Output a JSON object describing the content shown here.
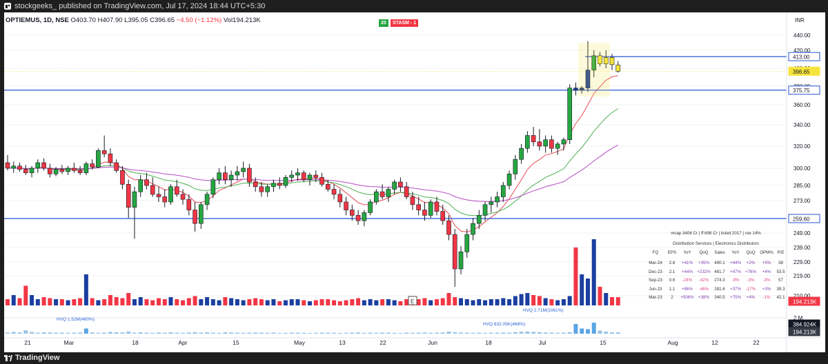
{
  "page": {
    "publisher_line": "stockgeeks_ published on TradingView.com, Jul 17, 2024 18:44 UTC+5:30",
    "brand": "TradingView"
  },
  "legend": {
    "symbol": "OPTIEMUS, 1D, NSE",
    "open": "O403.70",
    "high": "H407.90",
    "low": "L395.05",
    "close": "C396.65",
    "change": "−4.50 (−1.12%)",
    "volume": "Vol194.213K"
  },
  "badges": [
    {
      "label": "20",
      "color": "#26a641"
    },
    {
      "label": "STASM - 1",
      "color": "#f23645"
    }
  ],
  "currency": "INR",
  "colors": {
    "up_candle": "#26a641",
    "down_candle": "#f23645",
    "highlight_candle": "#f6e43c",
    "bullish_big": "#1b3fa0",
    "level_line": "#2454d6",
    "ema_fast": "#e94a55",
    "ema_mid": "#4caf50",
    "ema_slow": "#b44cc2"
  },
  "price_axis": {
    "ticks": [
      "440.00",
      "420.00",
      "400.00",
      "380.00",
      "360.00",
      "340.00",
      "320.00",
      "300.00",
      "285.00",
      "273.00",
      "249.00",
      "239.00",
      "229.00",
      "219.00",
      "210.00",
      "2 M"
    ],
    "labels": [
      {
        "text": "413.00",
        "kind": "level"
      },
      {
        "text": "396.65",
        "kind": "last"
      },
      {
        "text": "375.75",
        "kind": "level"
      },
      {
        "text": "259.60",
        "kind": "level"
      },
      {
        "text": "194.213K",
        "kind": "volume"
      },
      {
        "text": "384.924K",
        "kind": "volume-dark"
      },
      {
        "text": "194.213K",
        "kind": "volume-dark2"
      }
    ]
  },
  "time_axis": [
    "21",
    "Mar",
    "18",
    "Apr",
    "15",
    "May",
    "13",
    "22",
    "Jun",
    "18",
    "Jul",
    "15",
    "Aug",
    "12",
    "22"
  ],
  "annotations": {
    "hvq_1": "HVQ 1.52M(480%)",
    "hvq_2": "HVQ 832.05K(468%)",
    "hvq_3": "HVQ 2.71M(1061%)",
    "event_marker": "E"
  },
  "chart_data": {
    "type": "candlestick",
    "levels": [
      413.0,
      375.75,
      259.6
    ],
    "last_price": 396.65,
    "volume_last": "194.213K",
    "ylim": [
      210,
      440
    ]
  },
  "fundamentals": {
    "header": "mcap 3406 Cr  |  ff 698 Cr  |  listed 2017  |  roe 14%",
    "sector": "Distribution Services  |  Electronics Distributors",
    "columns": [
      "FQ",
      "EPS",
      "YoY",
      "QoQ",
      "Sales",
      "YoY",
      "QoQ",
      "OPM%",
      "P/E"
    ],
    "rows": [
      [
        "Mar-24",
        "2.8",
        "+41%",
        "+35%",
        "490.1",
        "+44%",
        "+2%",
        "+5%",
        "38"
      ],
      [
        "Dec-23",
        "2.1",
        "+44%",
        "+232%",
        "481.7",
        "+47%",
        "+76%",
        "+4%",
        "53.5"
      ],
      [
        "Sep-23",
        "0.6",
        "-24%",
        "-42%",
        "274.3",
        "-9%",
        "-3%",
        "-3%",
        "57"
      ],
      [
        "Jun-23",
        "1.1",
        "+86%",
        "-46%",
        "281.6",
        "+37%",
        "-17%",
        "+3%",
        "39.3"
      ],
      [
        "Mar-23",
        "2",
        "+506%",
        "+38%",
        "340.5",
        "+75%",
        "+4%",
        "-1%",
        "42.1"
      ]
    ]
  }
}
